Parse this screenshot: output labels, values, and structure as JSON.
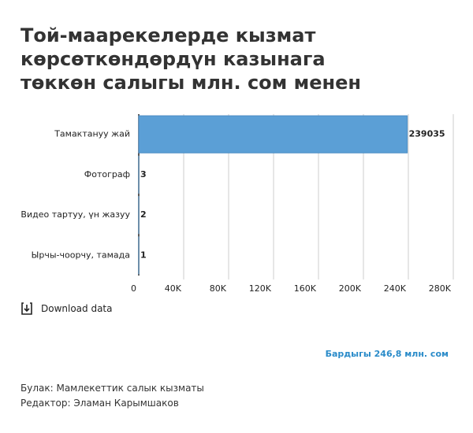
{
  "chart_data": {
    "type": "bar",
    "orientation": "horizontal",
    "title": "Той-маарекелерде кызмат көрсөткөндөрдүн казынага төккөн салыгы млн. сом менен",
    "categories": [
      "Тамактануу жай",
      "Фотограф",
      "Видео тартуу, үн жазуу",
      "Ырчы-чоорчу, тамада"
    ],
    "values": [
      239035,
      3,
      2,
      1
    ],
    "color": "#5b9fd6",
    "xlim": [
      0,
      280000
    ],
    "xticks": [
      0,
      {
        "value": 40000,
        "label": "40K"
      },
      {
        "value": 80000,
        "label": "80K"
      },
      {
        "value": 120000,
        "label": "120K"
      },
      {
        "value": 160000,
        "label": "160K"
      },
      {
        "value": 200000,
        "label": "200K"
      },
      {
        "value": 240000,
        "label": "240K"
      },
      {
        "value": 280000,
        "label": "280K"
      }
    ],
    "grid": true,
    "download_label": "Download data",
    "total_note": "Бардыгы 246,8 млн. сом",
    "source": "Булак: Мамлекеттик салык кызматы",
    "editor": "Редактор: Эламан Карымшаков"
  }
}
